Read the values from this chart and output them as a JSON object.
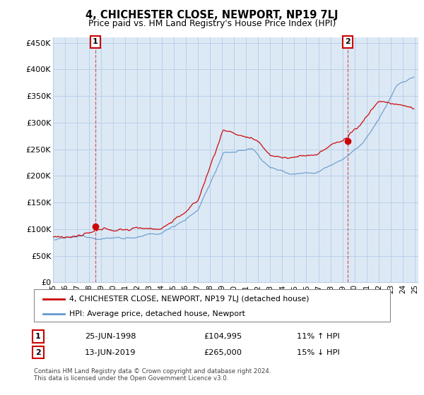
{
  "title": "4, CHICHESTER CLOSE, NEWPORT, NP19 7LJ",
  "subtitle": "Price paid vs. HM Land Registry's House Price Index (HPI)",
  "ylabel_ticks": [
    "£0",
    "£50K",
    "£100K",
    "£150K",
    "£200K",
    "£250K",
    "£300K",
    "£350K",
    "£400K",
    "£450K"
  ],
  "ytick_values": [
    0,
    50000,
    100000,
    150000,
    200000,
    250000,
    300000,
    350000,
    400000,
    450000
  ],
  "ylim": [
    0,
    460000
  ],
  "year_start": 1995,
  "year_end": 2025,
  "sale1_year": 1998.5,
  "sale1_price": 104995,
  "sale2_year": 2019.45,
  "sale2_price": 265000,
  "red_color": "#cc0000",
  "blue_color": "#6699cc",
  "plot_bg_color": "#dce9f5",
  "legend_red_label": "4, CHICHESTER CLOSE, NEWPORT, NP19 7LJ (detached house)",
  "legend_blue_label": "HPI: Average price, detached house, Newport",
  "table_row1": [
    "1",
    "25-JUN-1998",
    "£104,995",
    "11% ↑ HPI"
  ],
  "table_row2": [
    "2",
    "13-JUN-2019",
    "£265,000",
    "15% ↓ HPI"
  ],
  "footnote": "Contains HM Land Registry data © Crown copyright and database right 2024.\nThis data is licensed under the Open Government Licence v3.0.",
  "grid_color": "#b8cfe8",
  "spine_color": "#b8cfe8"
}
